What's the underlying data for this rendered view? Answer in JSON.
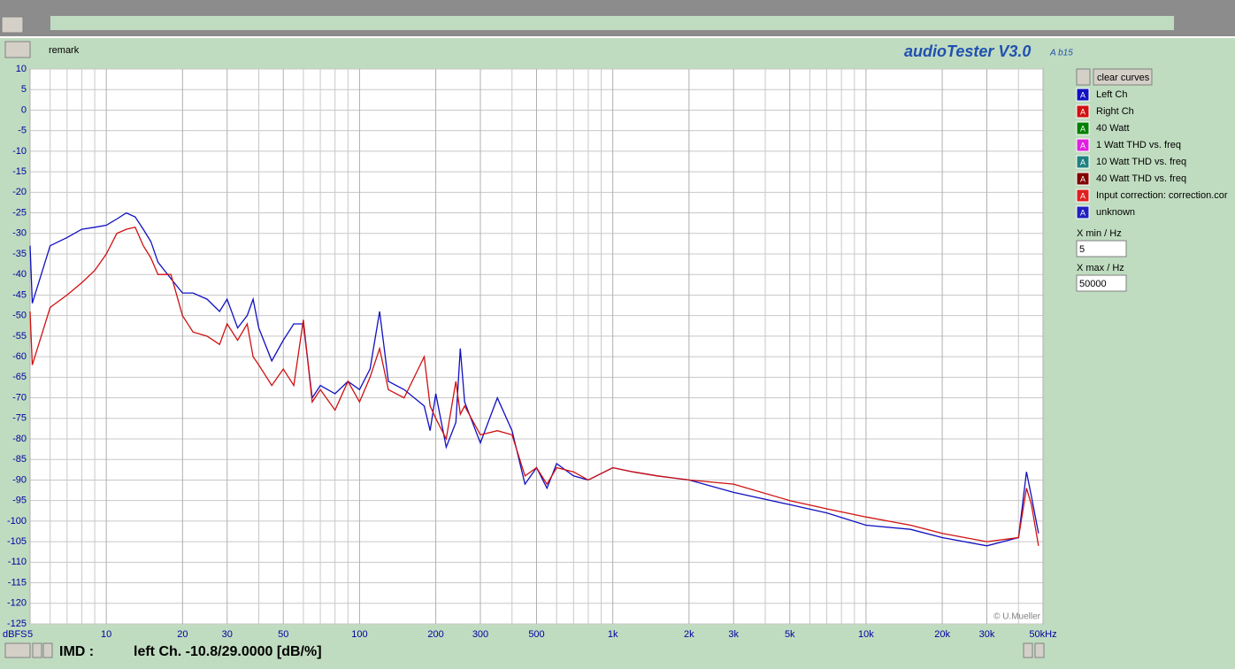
{
  "ui": {
    "remark": "remark",
    "app_title": "audioTester V3.0",
    "app_build": "A b15",
    "clear_button": "clear curves",
    "other_curves": [
      {
        "name": "40 Watt",
        "color": "#008000"
      },
      {
        "name": "1 Watt THD vs. freq",
        "color": "#e020e0"
      },
      {
        "name": "10 Watt THD vs. freq",
        "color": "#208080"
      },
      {
        "name": "40 Watt THD vs. freq",
        "color": "#800000"
      },
      {
        "name": "Input correction: correction.cor",
        "color": "#e02020"
      },
      {
        "name": "unknown",
        "color": "#2020c0"
      }
    ],
    "curve_icon": "A",
    "xmin_label": "X min / Hz",
    "xmin_value": "5",
    "xmax_label": "X max / Hz",
    "xmax_value": "50000",
    "imd_label": "IMD :",
    "imd_value": "left Ch. -10.8/29.0000 [dB/%]",
    "copyright": "© U.Mueller"
  },
  "chart_data": {
    "type": "line",
    "xlog": true,
    "grid": true,
    "ylabel": "dBFS",
    "xlim": [
      5,
      50000
    ],
    "ylim": [
      -125,
      10
    ],
    "xticks": [
      5,
      10,
      20,
      30,
      50,
      100,
      200,
      300,
      500,
      {
        "value": 1000,
        "label": "1k"
      },
      {
        "value": 2000,
        "label": "2k"
      },
      {
        "value": 3000,
        "label": "3k"
      },
      {
        "value": 5000,
        "label": "5k"
      },
      {
        "value": 10000,
        "label": "10k"
      },
      {
        "value": 20000,
        "label": "20k"
      },
      {
        "value": 30000,
        "label": "30k"
      },
      {
        "value": 50000,
        "label": "50kHz"
      }
    ],
    "xgrid_minor": [
      6,
      7,
      8,
      9,
      40,
      60,
      70,
      80,
      90,
      400,
      600,
      700,
      800,
      900,
      4000,
      6000,
      7000,
      8000,
      9000,
      40000
    ],
    "yticks": [
      10,
      5,
      0,
      -5,
      -10,
      -15,
      -20,
      -25,
      -30,
      -35,
      -40,
      -45,
      -50,
      -55,
      -60,
      -65,
      -70,
      -75,
      -80,
      -85,
      -90,
      -95,
      -100,
      -105,
      -110,
      -115,
      -120,
      -125
    ],
    "x": [
      5,
      5.1,
      6,
      7,
      8,
      9,
      10,
      11,
      12,
      13,
      14,
      15,
      16,
      18,
      20,
      22,
      25,
      28,
      30,
      33,
      36,
      38,
      40,
      45,
      50,
      55,
      60,
      65,
      70,
      80,
      90,
      100,
      110,
      120,
      130,
      150,
      180,
      190,
      200,
      220,
      240,
      250,
      260,
      300,
      350,
      400,
      450,
      500,
      550,
      600,
      700,
      800,
      1000,
      1200,
      1500,
      2000,
      3000,
      5000,
      7000,
      10000,
      15000,
      20000,
      30000,
      40000,
      43000,
      45000,
      48000
    ],
    "series": [
      {
        "name": "Left Ch",
        "color": "#1010c0",
        "values": [
          -33,
          -47,
          -33,
          -31,
          -29,
          -28.5,
          -28,
          -26.5,
          -25,
          -26,
          -29,
          -32,
          -37,
          -41,
          -44.5,
          -44.5,
          -46,
          -49,
          -46,
          -53,
          -50,
          -46,
          -53,
          -61,
          -56,
          -52,
          -52,
          -70,
          -67,
          -69,
          -66,
          -68,
          -63,
          -49,
          -66,
          -68,
          -72,
          -78,
          -69,
          -82,
          -76,
          -58,
          -71,
          -81,
          -70,
          -78,
          -91,
          -87,
          -92,
          -86,
          -89,
          -90,
          -87,
          -88,
          -89,
          -90,
          -93,
          -96,
          -98,
          -101,
          -102,
          -104,
          -106,
          -104,
          -88,
          -94,
          -103
        ]
      },
      {
        "name": "Right Ch",
        "color": "#d01010",
        "values": [
          -49,
          -62,
          -48,
          -45,
          -42,
          -39,
          -35,
          -30,
          -29,
          -28.5,
          -33,
          -36,
          -40,
          -40,
          -50,
          -54,
          -55,
          -57,
          -52,
          -56,
          -52,
          -60,
          -62,
          -67,
          -63,
          -67,
          -51,
          -71,
          -68,
          -73,
          -66,
          -71,
          -65,
          -58,
          -68,
          -70,
          -60,
          -72,
          -75,
          -80,
          -66,
          -74,
          -72,
          -79,
          -78,
          -79,
          -89,
          -87,
          -91,
          -87,
          -88,
          -90,
          -87,
          -88,
          -89,
          -90,
          -91,
          -95,
          -97,
          -99,
          -101,
          -103,
          -105,
          -104,
          -92,
          -96,
          -106
        ]
      }
    ]
  }
}
